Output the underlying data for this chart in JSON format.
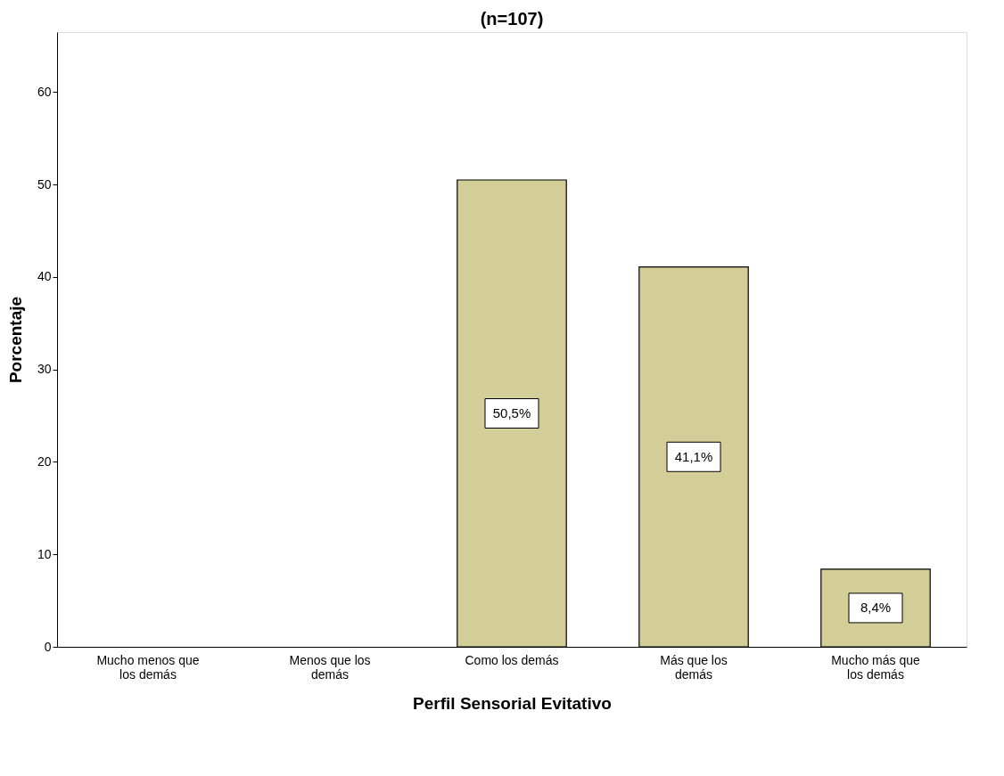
{
  "chart_data": {
    "type": "bar",
    "title": "(n=107)",
    "xlabel": "Perfil Sensorial Evitativo",
    "ylabel": "Porcentaje",
    "categories": [
      "Mucho menos que los demás",
      "Menos que los demás",
      "Como los demás",
      "Más que los demás",
      "Mucho más que los demás"
    ],
    "values": [
      null,
      null,
      50.5,
      41.1,
      8.4
    ],
    "value_labels": [
      null,
      null,
      "50,5%",
      "41,1%",
      "8,4%"
    ],
    "color": "#d3ce97",
    "ylim": [
      0,
      66.5
    ],
    "yticks": [
      0,
      10,
      20,
      30,
      40,
      50,
      60
    ],
    "grid": false
  }
}
